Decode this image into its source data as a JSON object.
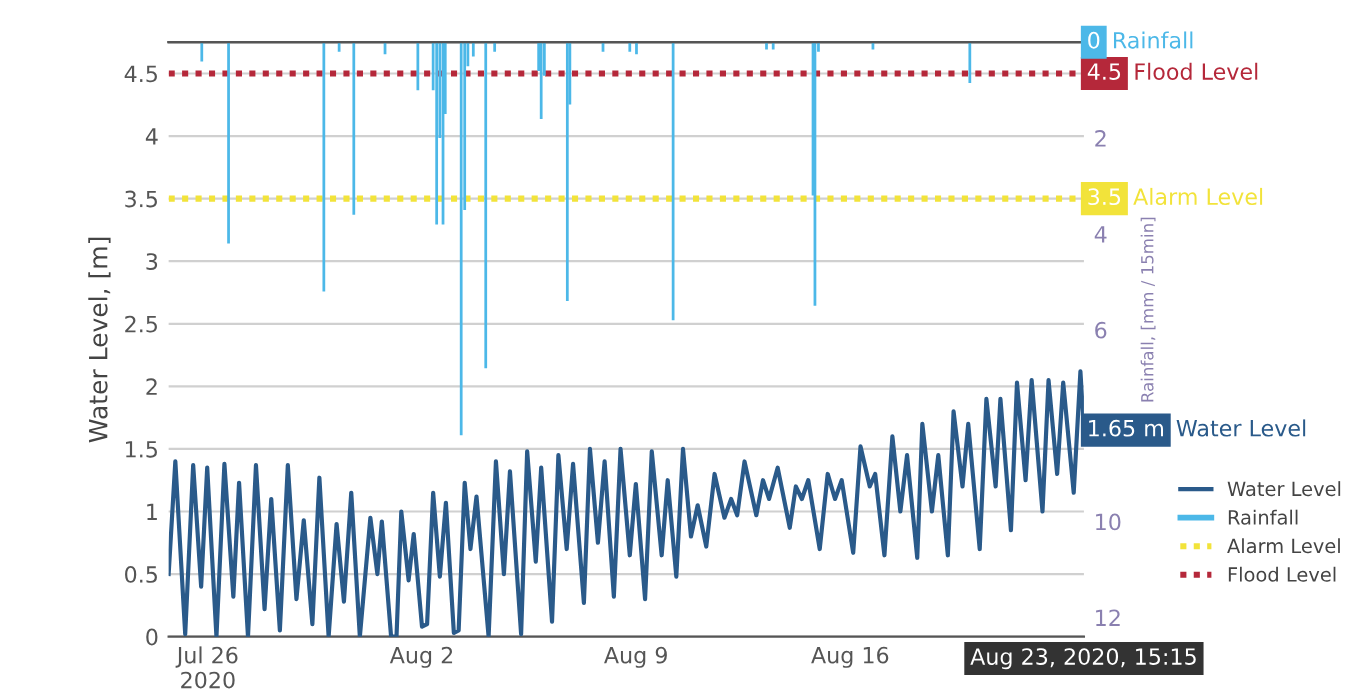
{
  "chart_data": {
    "type": "line",
    "ylabel": "Water Level, [m]",
    "y2label": "Rainfall, [mm / 15min]",
    "xlim": [
      "2020-07-24T17:15",
      "2020-08-23T15:15"
    ],
    "xticks": [
      {
        "value": "2020-07-26",
        "label": "Jul 26\n2020"
      },
      {
        "value": "2020-08-02",
        "label": "Aug 2"
      },
      {
        "value": "2020-08-09",
        "label": "Aug 9"
      },
      {
        "value": "2020-08-16",
        "label": "Aug 16"
      }
    ],
    "ylim": [
      0,
      4.75
    ],
    "yticks": [
      0,
      0.5,
      1,
      1.5,
      2,
      2.5,
      3,
      3.5,
      4,
      4.5
    ],
    "y2lim": [
      12.4,
      0
    ],
    "y2ticks": [
      2,
      4,
      6,
      10,
      12
    ],
    "grid": "y",
    "legend": "right",
    "ref_lines": [
      {
        "axis": "y",
        "value": 3.5,
        "label": "Alarm Level",
        "color": "#f2e33a",
        "line_style": "dotted"
      },
      {
        "axis": "y",
        "value": 4.5,
        "label": "Flood Level",
        "color": "#b5283a",
        "line_style": "dotted"
      }
    ],
    "annotations": [
      {
        "text": "4.5",
        "x": "2020-08-23T15:15",
        "y": 4.5
      },
      {
        "text": "3.5",
        "x": "2020-08-23T15:15",
        "y": 3.5
      },
      "Aug 23, 2020, 15:15"
    ],
    "series": [
      {
        "name": "Water Level",
        "color": "#2a5a8a",
        "x": [
          "2020-07-24T17:15",
          "2020-07-24T22:30",
          "2020-07-25T06:15",
          "2020-07-25T12:30",
          "2020-07-25T18:45",
          "2020-07-25T23:30",
          "2020-07-26T06:45",
          "2020-07-26T13:00",
          "2020-07-26T20:00",
          "2020-07-27T00:30",
          "2020-07-27T07:30",
          "2020-07-27T13:45",
          "2020-07-27T20:30",
          "2020-07-28T01:45",
          "2020-07-28T08:30",
          "2020-07-28T14:45",
          "2020-07-28T21:30",
          "2020-07-29T03:15",
          "2020-07-29T10:00",
          "2020-07-29T15:30",
          "2020-07-29T22:45",
          "2020-07-30T05:00",
          "2020-07-30T10:45",
          "2020-07-30T16:30",
          "2020-07-30T23:15",
          "2020-07-31T07:30",
          "2020-07-31T13:00",
          "2020-07-31T16:30",
          "2020-07-31T23:45",
          "2020-08-01T04:00",
          "2020-08-01T07:45",
          "2020-08-01T13:30",
          "2020-08-01T17:30",
          "2020-08-02T00:00",
          "2020-08-02T04:00",
          "2020-08-02T08:45",
          "2020-08-02T14:00",
          "2020-08-02T18:45",
          "2020-08-03T01:00",
          "2020-08-03T04:45",
          "2020-08-03T09:30",
          "2020-08-03T14:00",
          "2020-08-03T18:45",
          "2020-08-04T04:15",
          "2020-08-04T10:00",
          "2020-08-04T16:15",
          "2020-08-04T21:00",
          "2020-08-05T05:45",
          "2020-08-05T10:30",
          "2020-08-05T17:15",
          "2020-08-05T21:30",
          "2020-08-06T06:00",
          "2020-08-06T11:00",
          "2020-08-06T17:30",
          "2020-08-06T22:30",
          "2020-08-07T07:00",
          "2020-08-07T11:45",
          "2020-08-07T18:00",
          "2020-08-07T23:15",
          "2020-08-08T06:30",
          "2020-08-08T11:45",
          "2020-08-08T19:00",
          "2020-08-08T23:45",
          "2020-08-09T07:00",
          "2020-08-09T12:15",
          "2020-08-09T20:00",
          "2020-08-10T00:45",
          "2020-08-10T07:30",
          "2020-08-10T12:45",
          "2020-08-10T19:00",
          "2020-08-11T00:15",
          "2020-08-11T07:00",
          "2020-08-11T13:30",
          "2020-08-11T21:15",
          "2020-08-12T02:30",
          "2020-08-12T07:15",
          "2020-08-12T13:00",
          "2020-08-12T22:15",
          "2020-08-13T03:30",
          "2020-08-13T08:15",
          "2020-08-13T15:00",
          "2020-08-14T00:30",
          "2020-08-14T05:15",
          "2020-08-14T10:00",
          "2020-08-14T15:00",
          "2020-08-15T00:00",
          "2020-08-15T06:15",
          "2020-08-15T12:00",
          "2020-08-15T17:15",
          "2020-08-16T02:15",
          "2020-08-16T08:00",
          "2020-08-16T15:15",
          "2020-08-16T19:30",
          "2020-08-17T02:45",
          "2020-08-17T09:00",
          "2020-08-17T15:15",
          "2020-08-17T20:30",
          "2020-08-18T04:30",
          "2020-08-18T08:30",
          "2020-08-18T16:00",
          "2020-08-18T21:00",
          "2020-08-19T04:30",
          "2020-08-19T09:00",
          "2020-08-19T16:00",
          "2020-08-19T20:30",
          "2020-08-20T05:30",
          "2020-08-20T10:45",
          "2020-08-20T18:00",
          "2020-08-20T21:45",
          "2020-08-21T06:00",
          "2020-08-21T10:45",
          "2020-08-21T17:30",
          "2020-08-21T22:15",
          "2020-08-22T06:45",
          "2020-08-22T11:30",
          "2020-08-22T18:15",
          "2020-08-22T23:00",
          "2020-08-23T07:15",
          "2020-08-23T12:30",
          "2020-08-23T15:15"
        ],
        "values": [
          0.5,
          1.4,
          0.02,
          1.37,
          0.4,
          1.35,
          0,
          1.38,
          0.32,
          1.23,
          0,
          1.37,
          0.22,
          1.1,
          0.05,
          1.37,
          0.3,
          0.93,
          0.1,
          1.27,
          0,
          0.9,
          0.28,
          1.15,
          0,
          0.95,
          0.5,
          0.92,
          0,
          0,
          1.0,
          0.45,
          0.82,
          0.08,
          0.1,
          1.15,
          0.48,
          1.07,
          0.03,
          0.05,
          1.23,
          0.7,
          1.12,
          0,
          1.4,
          0.5,
          1.32,
          0.02,
          1.48,
          0.6,
          1.35,
          0.12,
          1.45,
          0.7,
          1.38,
          0.27,
          1.5,
          0.75,
          1.4,
          0.32,
          1.5,
          0.65,
          1.22,
          0.3,
          1.48,
          0.65,
          1.25,
          0.48,
          1.5,
          0.8,
          1.05,
          0.72,
          1.3,
          0.95,
          1.1,
          0.97,
          1.4,
          0.97,
          1.25,
          1.1,
          1.35,
          0.87,
          1.2,
          1.1,
          1.25,
          0.7,
          1.3,
          1.1,
          1.25,
          0.67,
          1.52,
          1.2,
          1.3,
          0.65,
          1.6,
          1.0,
          1.45,
          0.63,
          1.7,
          1.0,
          1.45,
          0.65,
          1.8,
          1.2,
          1.7,
          0.7,
          1.9,
          1.2,
          1.9,
          0.85,
          2.03,
          1.25,
          2.05,
          1.0,
          2.05,
          1.3,
          2.03,
          1.15,
          2.12,
          1.65
        ],
        "value_labels": [
          null,
          null,
          null,
          null,
          null,
          null,
          null,
          null,
          null,
          null,
          null,
          null,
          null,
          null,
          null,
          null,
          null,
          null,
          null,
          null,
          null,
          null,
          null,
          null,
          null,
          null,
          null,
          null,
          null,
          null,
          null,
          null,
          null,
          null,
          null,
          null,
          null,
          null,
          null,
          null,
          null,
          null,
          null,
          null,
          null,
          null,
          null,
          null,
          null,
          null,
          null,
          null,
          null,
          null,
          null,
          null,
          null,
          null,
          null,
          null,
          null,
          null,
          null,
          null,
          null,
          null,
          null,
          null,
          null,
          null,
          null,
          null,
          null,
          null,
          null,
          null,
          null,
          null,
          null,
          null,
          null,
          null,
          null,
          null,
          null,
          null,
          null,
          null,
          null,
          null,
          null,
          null,
          null,
          null,
          null,
          null,
          null,
          null,
          null,
          null,
          null,
          null,
          null,
          null,
          null,
          null,
          null,
          null,
          null,
          null,
          null,
          null,
          null,
          null,
          null,
          null,
          null,
          null,
          null,
          "1.65 m"
        ]
      },
      {
        "name": "Rainfall",
        "type": "bar",
        "axis": "y2",
        "color": "#4cb8e8",
        "x": [
          "2020-07-25T19:15",
          "2020-07-26T16:15",
          "2020-07-29T19:00",
          "2020-07-30T07:00",
          "2020-07-30T18:30",
          "2020-07-31T19:00",
          "2020-08-01T20:45",
          "2020-08-02T08:45",
          "2020-08-02T11:30",
          "2020-08-02T14:00",
          "2020-08-02T16:30",
          "2020-08-02T18:15",
          "2020-08-03T06:45",
          "2020-08-03T09:30",
          "2020-08-03T12:00",
          "2020-08-03T16:15",
          "2020-08-04T02:00",
          "2020-08-04T09:00",
          "2020-08-05T19:30",
          "2020-08-05T21:30",
          "2020-08-06T00:00",
          "2020-08-06T18:00",
          "2020-08-06T20:00",
          "2020-08-07T22:00",
          "2020-08-08T19:00",
          "2020-08-09T00:15",
          "2020-08-10T05:00",
          "2020-08-13T06:15",
          "2020-08-13T11:30",
          "2020-08-14T18:45",
          "2020-08-14T20:15",
          "2020-08-14T23:00",
          "2020-08-16T17:45",
          "2020-08-19T21:45",
          "2020-08-23T15:15"
        ],
        "values": [
          0.4,
          4.2,
          5.2,
          0.2,
          3.6,
          0.25,
          1.0,
          1.0,
          3.8,
          2.0,
          3.8,
          1.5,
          8.2,
          3.5,
          0.5,
          0.3,
          6.8,
          0.2,
          0.6,
          1.6,
          0.7,
          5.4,
          1.3,
          0.2,
          0.2,
          0.25,
          5.8,
          0.15,
          0.15,
          3.2,
          5.5,
          0.2,
          0.15,
          0.85,
          0
        ],
        "value_labels": [
          null,
          null,
          null,
          null,
          null,
          null,
          null,
          null,
          null,
          null,
          null,
          null,
          null,
          null,
          null,
          null,
          null,
          null,
          null,
          null,
          null,
          null,
          null,
          null,
          null,
          null,
          null,
          null,
          null,
          null,
          null,
          null,
          null,
          null,
          "0"
        ]
      }
    ]
  }
}
